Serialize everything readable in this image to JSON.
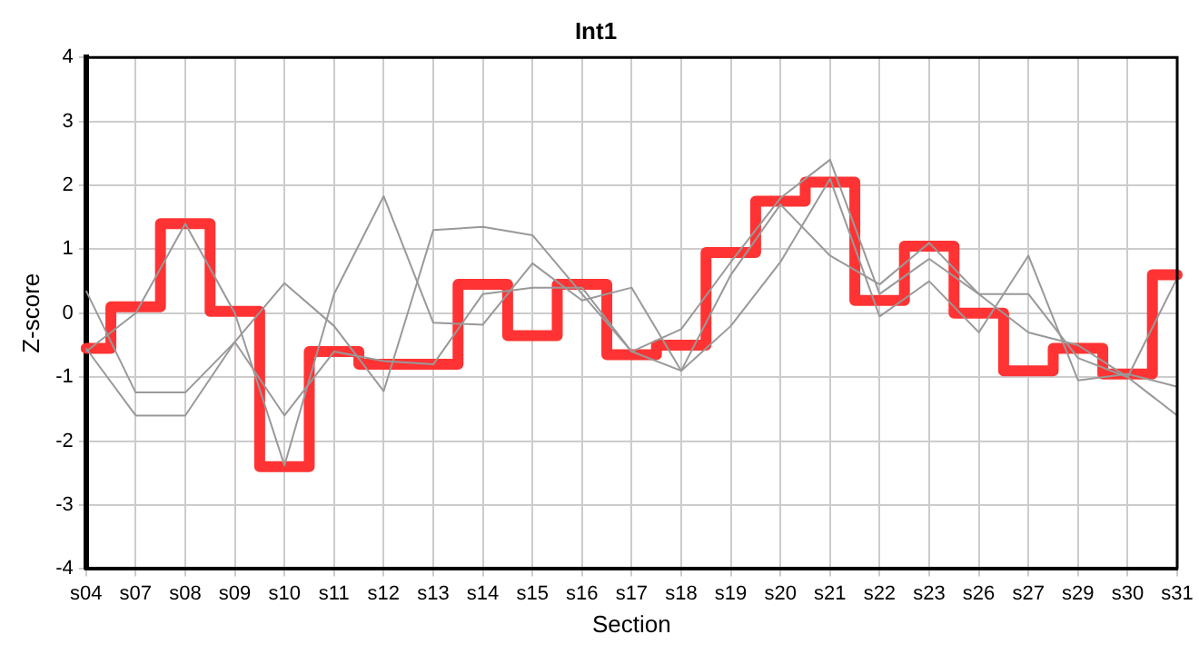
{
  "chart_data": {
    "type": "line",
    "title": "Int1",
    "xlabel": "Section",
    "ylabel": "Z-score",
    "categories": [
      "s04",
      "s07",
      "s08",
      "s09",
      "s10",
      "s11",
      "s12",
      "s13",
      "s14",
      "s15",
      "s16",
      "s17",
      "s18",
      "s19",
      "s20",
      "s21",
      "s22",
      "s23",
      "s26",
      "s27",
      "s29",
      "s30",
      "s31"
    ],
    "ylim": [
      -4,
      4
    ],
    "yticks": [
      -4,
      -3,
      -2,
      -1,
      0,
      1,
      2,
      3,
      4
    ],
    "grid": true,
    "legend": false,
    "marker": "none",
    "series": [
      {
        "type": "line",
        "color": "#999999",
        "values": [
          0.35,
          -1.24,
          -1.24,
          -0.45,
          0.47,
          -0.2,
          -1.22,
          1.3,
          1.35,
          1.22,
          0.3,
          -0.6,
          -0.25,
          0.8,
          1.8,
          2.4,
          0.3,
          0.85,
          0.3,
          0.3,
          -0.7,
          -1.0,
          -1.6
        ]
      },
      {
        "type": "line",
        "color": "#999999",
        "values": [
          -0.55,
          -1.6,
          -1.6,
          -0.45,
          -1.6,
          -0.6,
          -0.75,
          -0.8,
          0.3,
          0.4,
          0.4,
          -0.6,
          -0.9,
          -0.2,
          0.8,
          2.1,
          -0.05,
          0.5,
          -0.3,
          0.9,
          -1.05,
          -0.95,
          -1.15
        ]
      },
      {
        "type": "line",
        "color": "#999999",
        "values": [
          -0.6,
          0.0,
          1.4,
          0.0,
          -2.38,
          0.3,
          1.83,
          -0.15,
          -0.18,
          0.78,
          0.2,
          0.4,
          -0.9,
          0.6,
          1.7,
          0.9,
          0.45,
          1.1,
          0.3,
          -0.3,
          -0.5,
          -1.0,
          0.55
        ]
      },
      {
        "type": "step",
        "color": "#ff3333",
        "values": [
          -0.55,
          0.1,
          1.4,
          0.03,
          -2.4,
          -0.6,
          -0.8,
          -0.8,
          0.45,
          -0.35,
          0.45,
          -0.65,
          -0.5,
          0.95,
          1.75,
          2.05,
          0.2,
          1.05,
          0.0,
          -0.9,
          -0.55,
          -0.95,
          0.6
        ]
      }
    ]
  }
}
